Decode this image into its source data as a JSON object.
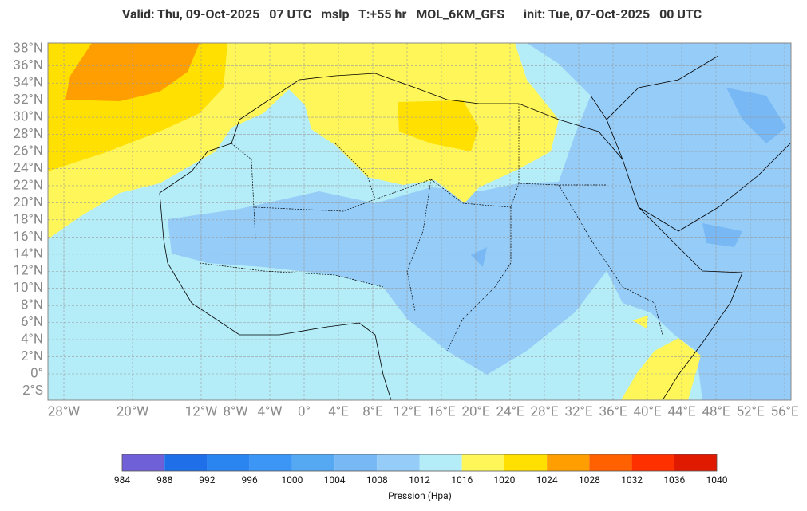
{
  "header": {
    "title": "Valid: Thu, 09-Oct-2025   07 UTC   mslp   T:+55 hr   MOL_6KM_GFS      init: Tue, 07-Oct-2025   00 UTC"
  },
  "map": {
    "lat_labels": [
      {
        "value": 38,
        "label": "38°N"
      },
      {
        "value": 36,
        "label": "36°N"
      },
      {
        "value": 34,
        "label": "34°N"
      },
      {
        "value": 32,
        "label": "32°N"
      },
      {
        "value": 30,
        "label": "30°N"
      },
      {
        "value": 28,
        "label": "28°N"
      },
      {
        "value": 26,
        "label": "26°N"
      },
      {
        "value": 24,
        "label": "24°N"
      },
      {
        "value": 22,
        "label": "22°N"
      },
      {
        "value": 20,
        "label": "20°N"
      },
      {
        "value": 18,
        "label": "18°N"
      },
      {
        "value": 16,
        "label": "16°N"
      },
      {
        "value": 14,
        "label": "14°N"
      },
      {
        "value": 12,
        "label": "12°N"
      },
      {
        "value": 10,
        "label": "10°N"
      },
      {
        "value": 8,
        "label": "8°N"
      },
      {
        "value": 6,
        "label": "6°N"
      },
      {
        "value": 4,
        "label": "4°N"
      },
      {
        "value": 2,
        "label": "2°N"
      },
      {
        "value": 0,
        "label": "0°"
      },
      {
        "value": -2,
        "label": "2°S"
      }
    ],
    "lon_labels": [
      {
        "value": -28,
        "label": "28°W"
      },
      {
        "value": -20,
        "label": "20°W"
      },
      {
        "value": -12,
        "label": "12°W"
      },
      {
        "value": -8,
        "label": "8°W"
      },
      {
        "value": -4,
        "label": "4°W"
      },
      {
        "value": 0,
        "label": "0°"
      },
      {
        "value": 4,
        "label": "4°E"
      },
      {
        "value": 8,
        "label": "8°E"
      },
      {
        "value": 12,
        "label": "12°E"
      },
      {
        "value": 16,
        "label": "16°E"
      },
      {
        "value": 20,
        "label": "20°E"
      },
      {
        "value": 24,
        "label": "24°E"
      },
      {
        "value": 28,
        "label": "28°E"
      },
      {
        "value": 32,
        "label": "32°E"
      },
      {
        "value": 36,
        "label": "36°E"
      },
      {
        "value": 40,
        "label": "40°E"
      },
      {
        "value": 44,
        "label": "44°E"
      },
      {
        "value": 48,
        "label": "48°E"
      },
      {
        "value": 52,
        "label": "52°E"
      },
      {
        "value": 56,
        "label": "56°E"
      }
    ]
  },
  "colorbar": {
    "ticks": [
      984,
      988,
      992,
      996,
      1000,
      1004,
      1008,
      1012,
      1016,
      1020,
      1024,
      1028,
      1032,
      1036,
      1040
    ],
    "colors": [
      "#7060d8",
      "#1e6fe8",
      "#2b85f0",
      "#3b96f5",
      "#55a8f2",
      "#78b8f5",
      "#96ccf8",
      "#b4ecf8",
      "#fff75a",
      "#ffe000",
      "#ff9e00",
      "#ff6000",
      "#ff3000",
      "#e01a00"
    ],
    "label": "Pression (Hpa)"
  }
}
